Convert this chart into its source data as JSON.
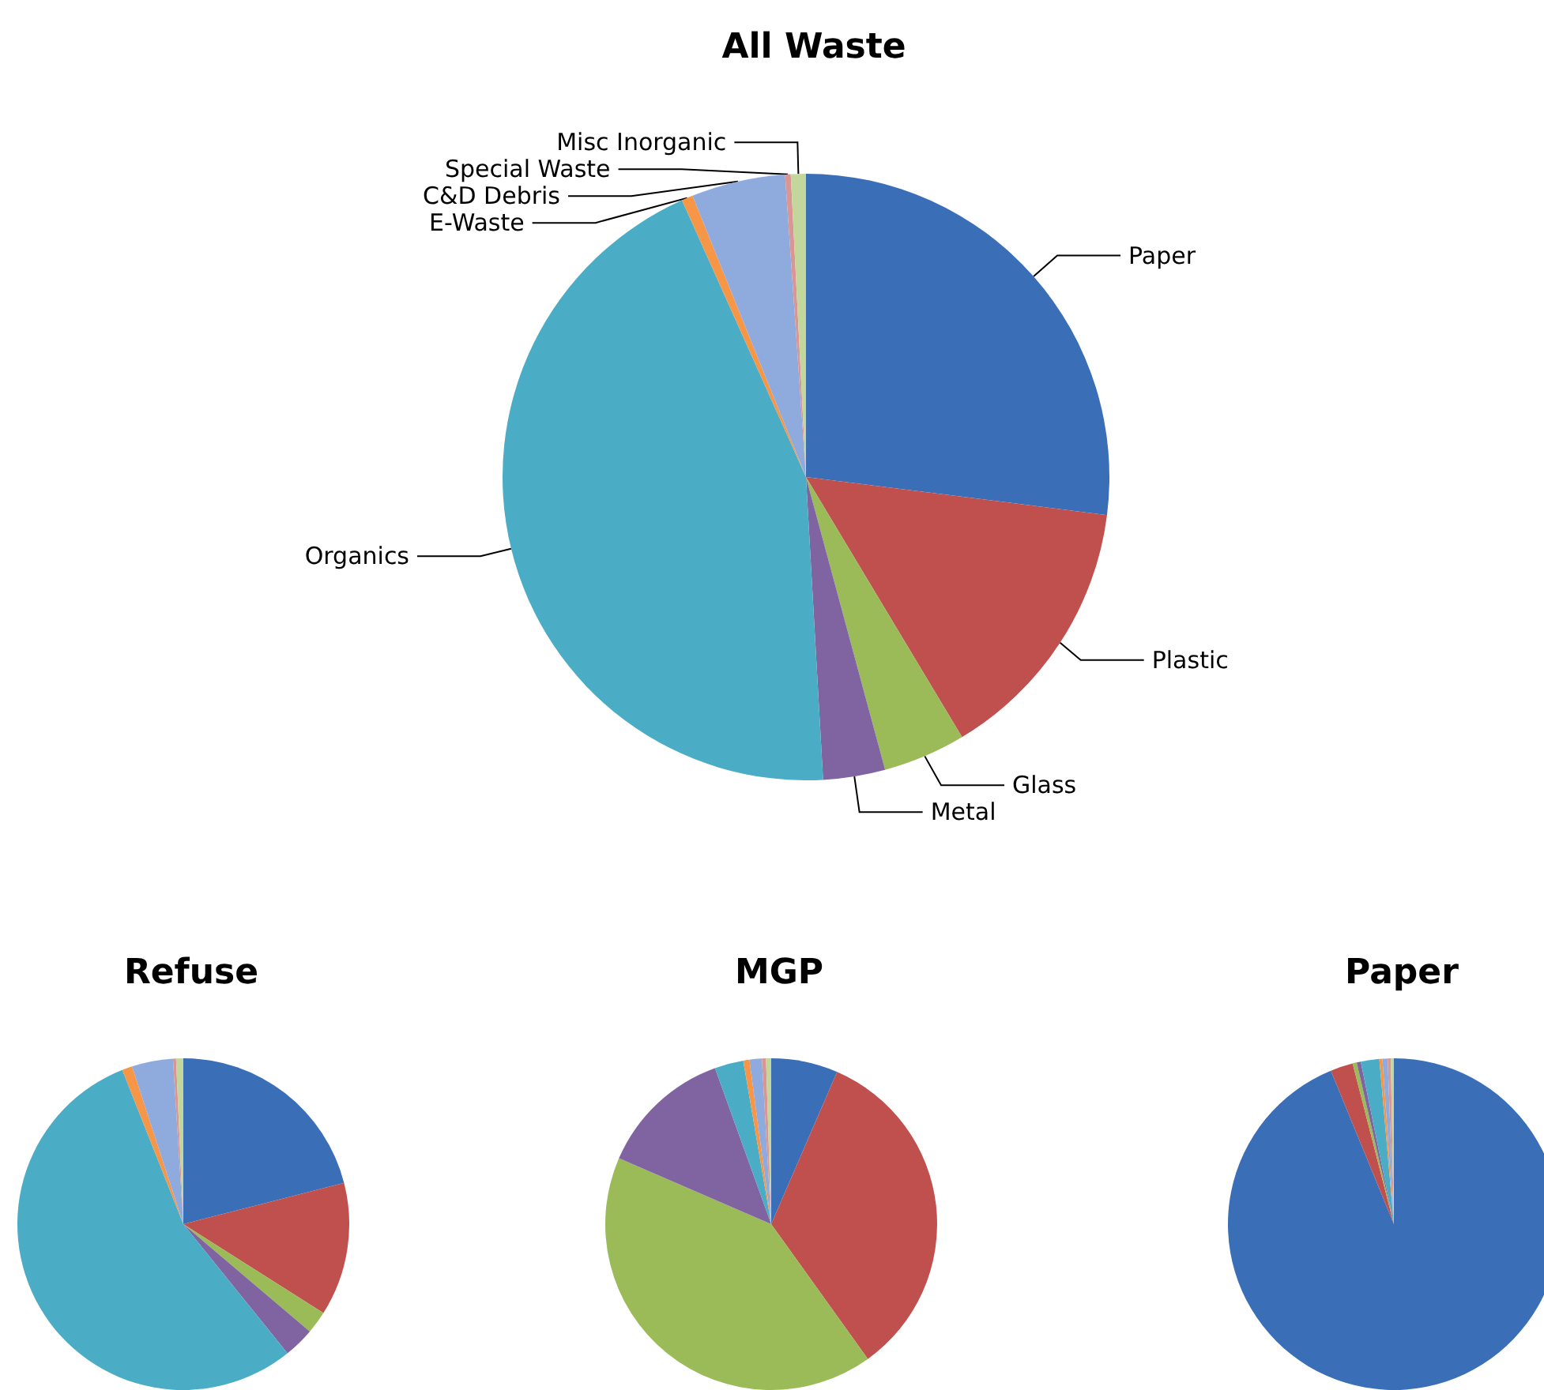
{
  "chart_data": [
    {
      "type": "pie",
      "title": "All Waste",
      "categories": [
        "Paper",
        "Plastic",
        "Glass",
        "Metal",
        "Organics",
        "E-Waste",
        "C&D Debris",
        "Special Waste",
        "Misc Inorganic"
      ],
      "values": [
        27,
        14.4,
        4.4,
        3.3,
        44.2,
        0.6,
        5,
        0.3,
        0.8
      ],
      "colors": [
        "#3a6fb8",
        "#c0504d",
        "#9bbb59",
        "#8064a2",
        "#4bacc6",
        "#f79646",
        "#8faadc",
        "#d99694",
        "#c3d69b"
      ]
    },
    {
      "type": "pie",
      "title": "Refuse",
      "categories": [
        null,
        null,
        null,
        null,
        null,
        null,
        null,
        null,
        null
      ],
      "values": [
        21,
        13,
        2.2,
        3,
        54.8,
        1,
        4,
        0.3,
        0.7
      ],
      "colors": [
        "#3a6fb8",
        "#c0504d",
        "#9bbb59",
        "#8064a2",
        "#4bacc6",
        "#f79646",
        "#8faadc",
        "#d99694",
        "#c3d69b"
      ]
    },
    {
      "type": "pie",
      "title": "MGP",
      "categories": [
        null,
        null,
        null,
        null,
        null,
        null,
        null,
        null,
        null
      ],
      "values": [
        6.5,
        33.6,
        41.4,
        13,
        2.8,
        0.6,
        1.2,
        0.4,
        0.5
      ],
      "colors": [
        "#3a6fb8",
        "#c0504d",
        "#9bbb59",
        "#8064a2",
        "#4bacc6",
        "#f79646",
        "#8faadc",
        "#d99694",
        "#c3d69b"
      ]
    },
    {
      "type": "pie",
      "title": "Paper",
      "categories": [
        null,
        null,
        null,
        null,
        null,
        null,
        null,
        null,
        null
      ],
      "values": [
        93.8,
        2.2,
        0.4,
        0.4,
        1.8,
        0.3,
        0.5,
        0.3,
        0.3
      ],
      "colors": [
        "#3a6fb8",
        "#c0504d",
        "#9bbb59",
        "#8064a2",
        "#4bacc6",
        "#f79646",
        "#8faadc",
        "#d99694",
        "#c3d69b"
      ]
    }
  ]
}
